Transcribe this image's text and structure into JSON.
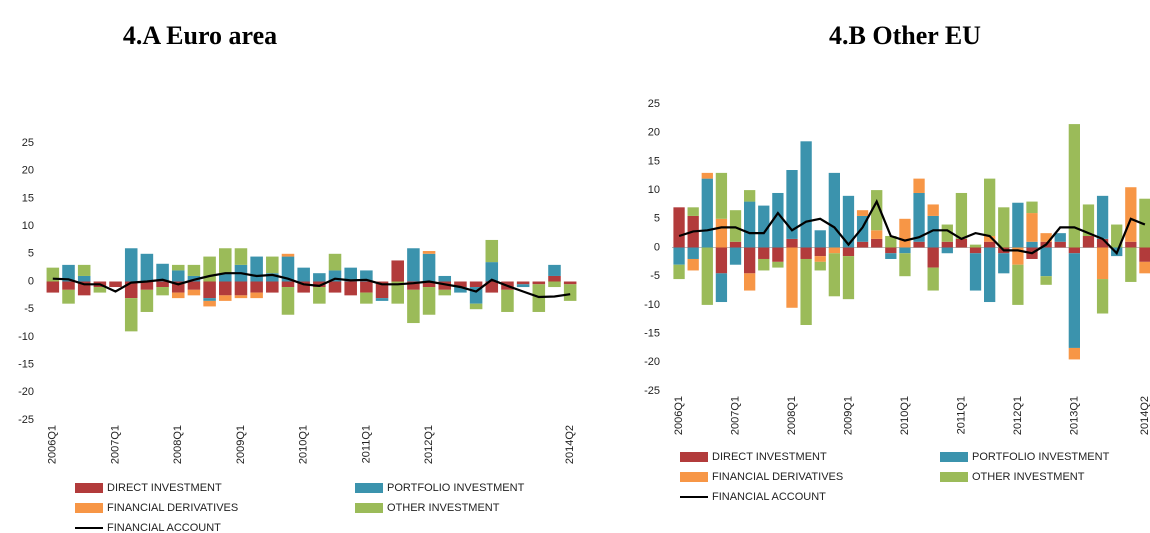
{
  "chart_data": [
    {
      "type": "bar",
      "stacked": true,
      "title": "4.A Euro area",
      "categories": [
        "2006Q1",
        null,
        null,
        null,
        "2007Q1",
        null,
        null,
        null,
        "2008Q1",
        null,
        null,
        null,
        "2009Q1",
        null,
        null,
        null,
        "2010Q1",
        null,
        null,
        null,
        "2011Q1",
        null,
        null,
        null,
        "2012Q1",
        null,
        null,
        null,
        null,
        null,
        null,
        null,
        null,
        "2014Q2"
      ],
      "ylim": [
        -25,
        25
      ],
      "yticks": [
        -25,
        -20,
        -15,
        -10,
        -5,
        0,
        5,
        10,
        15,
        20,
        25
      ],
      "series": [
        {
          "name": "DIRECT INVESTMENT",
          "color": "#b23b3b",
          "values": [
            -2,
            -1.5,
            -2.5,
            -1,
            -1,
            -3,
            -1.5,
            -1,
            -2,
            -1.5,
            -3,
            -2.5,
            -2.5,
            -2,
            -2,
            -1,
            -2,
            -1,
            -2,
            -2.5,
            -2,
            -3,
            3.8,
            -1.5,
            -1,
            -1.5,
            -1,
            -1,
            -2,
            -1.5,
            -0.5,
            -0.5,
            1,
            -0.5
          ]
        },
        {
          "name": "PORTFOLIO INVESTMENT",
          "color": "#3b93ad",
          "values": [
            0,
            3,
            1,
            0,
            0,
            6,
            5,
            3.2,
            2,
            1,
            -0.5,
            1.5,
            3,
            4.5,
            1.5,
            4.5,
            2.5,
            1.5,
            2,
            2.5,
            2,
            -0.5,
            0,
            6,
            5,
            1,
            -1,
            -3,
            3.5,
            0,
            -0.5,
            0,
            2,
            0
          ]
        },
        {
          "name": "FINANCIAL DERIVATIVES",
          "color": "#f79646",
          "values": [
            0,
            0,
            0,
            0,
            0,
            0,
            0,
            0,
            -1,
            -1,
            -1,
            -1,
            -0.5,
            -1,
            0,
            0.5,
            0,
            0,
            0,
            0,
            0,
            0,
            0,
            0,
            0.5,
            0,
            0,
            0,
            0,
            0,
            0,
            0,
            0,
            0
          ]
        },
        {
          "name": "OTHER INVESTMENT",
          "color": "#9bbb59",
          "values": [
            2.5,
            -2.5,
            2,
            -1,
            0,
            -6,
            -4,
            -1.5,
            1,
            2,
            4.5,
            4.5,
            3,
            0,
            3,
            -5,
            0,
            -3,
            3,
            0,
            -2,
            0,
            -4,
            -6,
            -5,
            -1,
            0,
            -1,
            4,
            -4,
            0,
            -5,
            -1,
            -3
          ]
        },
        {
          "name": "FINANCIAL ACCOUNT",
          "type": "line",
          "color": "#000000",
          "values": [
            0.5,
            0.4,
            -0.5,
            -0.5,
            -1.8,
            -0.2,
            0,
            0.3,
            -0.5,
            0.3,
            1,
            1.5,
            1.5,
            1,
            1.2,
            0.5,
            -0.5,
            -0.8,
            0.5,
            0.2,
            0.3,
            -0.5,
            -0.5,
            -0.3,
            0,
            -0.5,
            -1,
            -1.8,
            0.3,
            -0.8,
            -1.8,
            -2.8,
            -2.7,
            -2.3
          ]
        }
      ]
    },
    {
      "type": "bar",
      "stacked": true,
      "title": "4.B Other EU",
      "categories": [
        "2006Q1",
        null,
        null,
        null,
        "2007Q1",
        null,
        null,
        null,
        "2008Q1",
        null,
        null,
        null,
        "2009Q1",
        null,
        null,
        null,
        "2010Q1",
        null,
        null,
        null,
        "2011Q1",
        null,
        null,
        null,
        "2012Q1",
        null,
        null,
        null,
        "2013Q1",
        null,
        null,
        null,
        null,
        "2014Q2"
      ],
      "ylim": [
        -25,
        25
      ],
      "yticks": [
        -25,
        -20,
        -15,
        -10,
        -5,
        0,
        5,
        10,
        15,
        20,
        25
      ],
      "zero_line": true,
      "series": [
        {
          "name": "DIRECT INVESTMENT",
          "color": "#b23b3b",
          "values": [
            7,
            5.5,
            0,
            -4.5,
            1,
            -4.5,
            -2,
            -2.5,
            1.5,
            -2,
            -1.5,
            0,
            -1.5,
            1,
            1.5,
            -1,
            0,
            1,
            -3.5,
            1,
            1.5,
            -1,
            1,
            -1,
            0,
            -2,
            1,
            1,
            -1,
            2,
            1.5,
            0,
            1,
            -2.5
          ]
        },
        {
          "name": "PORTFOLIO INVESTMENT",
          "color": "#3b93ad",
          "values": [
            -3,
            -2,
            12,
            -5,
            -3,
            8,
            7.3,
            9.5,
            12,
            18.5,
            3,
            13,
            9,
            4.5,
            0,
            -1,
            -1,
            8.5,
            5.5,
            -1,
            0,
            -6.5,
            -9.5,
            -3.5,
            7.8,
            1,
            -5,
            1.5,
            -16.5,
            0,
            7.5,
            -1.5,
            0,
            0
          ]
        },
        {
          "name": "FINANCIAL DERIVATIVES",
          "color": "#f79646",
          "values": [
            0,
            -2,
            1,
            5,
            0,
            -3,
            0,
            0,
            -10.5,
            0,
            -1,
            -1,
            0,
            1,
            1.5,
            0,
            5,
            2.5,
            2,
            0,
            0,
            0,
            1,
            0,
            -3,
            5,
            1.5,
            0,
            -2,
            0,
            -5.5,
            0,
            9.5,
            -2
          ]
        },
        {
          "name": "OTHER INVESTMENT",
          "color": "#9bbb59",
          "values": [
            -2.5,
            1.5,
            -10,
            8,
            5.5,
            2,
            -2,
            -1,
            0,
            -11.5,
            -1.5,
            -7.5,
            -7.5,
            0,
            7,
            2,
            -4,
            0,
            -4,
            3,
            8,
            0.5,
            10,
            7,
            -7,
            2,
            -1.5,
            0,
            21.5,
            5.5,
            -6,
            4,
            -6,
            8.5
          ]
        },
        {
          "name": "FINANCIAL ACCOUNT",
          "type": "line",
          "color": "#000000",
          "values": [
            2,
            2.8,
            3,
            3.5,
            3.5,
            2.5,
            2.5,
            6,
            3,
            4.5,
            5,
            3.5,
            0.5,
            3.5,
            8,
            2,
            1.2,
            1.8,
            3,
            3,
            1.5,
            2.5,
            2,
            -0.5,
            -0.5,
            -1,
            0.5,
            3.5,
            3.5,
            2.5,
            1.5,
            -1,
            5,
            4
          ]
        }
      ]
    }
  ]
}
